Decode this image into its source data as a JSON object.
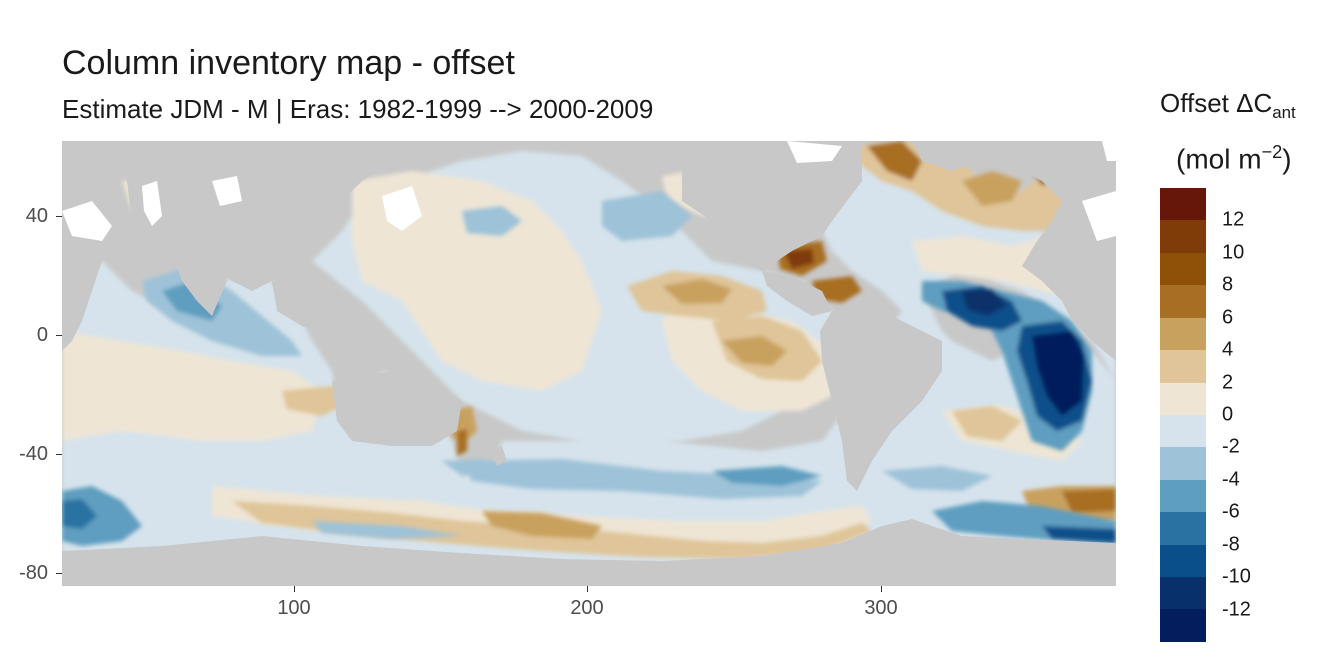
{
  "title": "Column inventory map - offset",
  "subtitle": "Estimate JDM - M | Eras: 1982-1999 --> 2000-2009",
  "legend": {
    "title_main": "Offset ΔC",
    "title_sub": "ant",
    "unit_main": "(mol m",
    "unit_sup": "−2",
    "unit_close": ")",
    "labels": [
      "12",
      "10",
      "8",
      "6",
      "4",
      "2",
      "0",
      "-2",
      "-4",
      "-6",
      "-8",
      "-10",
      "-12"
    ],
    "colors": [
      "#67170a",
      "#7f3b08",
      "#8f5108",
      "#a86e24",
      "#c9a15e",
      "#dfc599",
      "#eee5d5",
      "#d6e3ec",
      "#9ec2d8",
      "#5e9ec0",
      "#2a72a2",
      "#0b4f8a",
      "#08306b",
      "#041d5c"
    ]
  },
  "axes": {
    "x_ticks": [
      "100",
      "200",
      "300"
    ],
    "y_ticks": [
      "40",
      "0",
      "-40",
      "-80"
    ],
    "x_range": [
      20,
      380
    ],
    "y_range": [
      -85,
      65
    ]
  },
  "colors": {
    "land": "#c8c8c8",
    "missing": "#ffffff"
  }
}
